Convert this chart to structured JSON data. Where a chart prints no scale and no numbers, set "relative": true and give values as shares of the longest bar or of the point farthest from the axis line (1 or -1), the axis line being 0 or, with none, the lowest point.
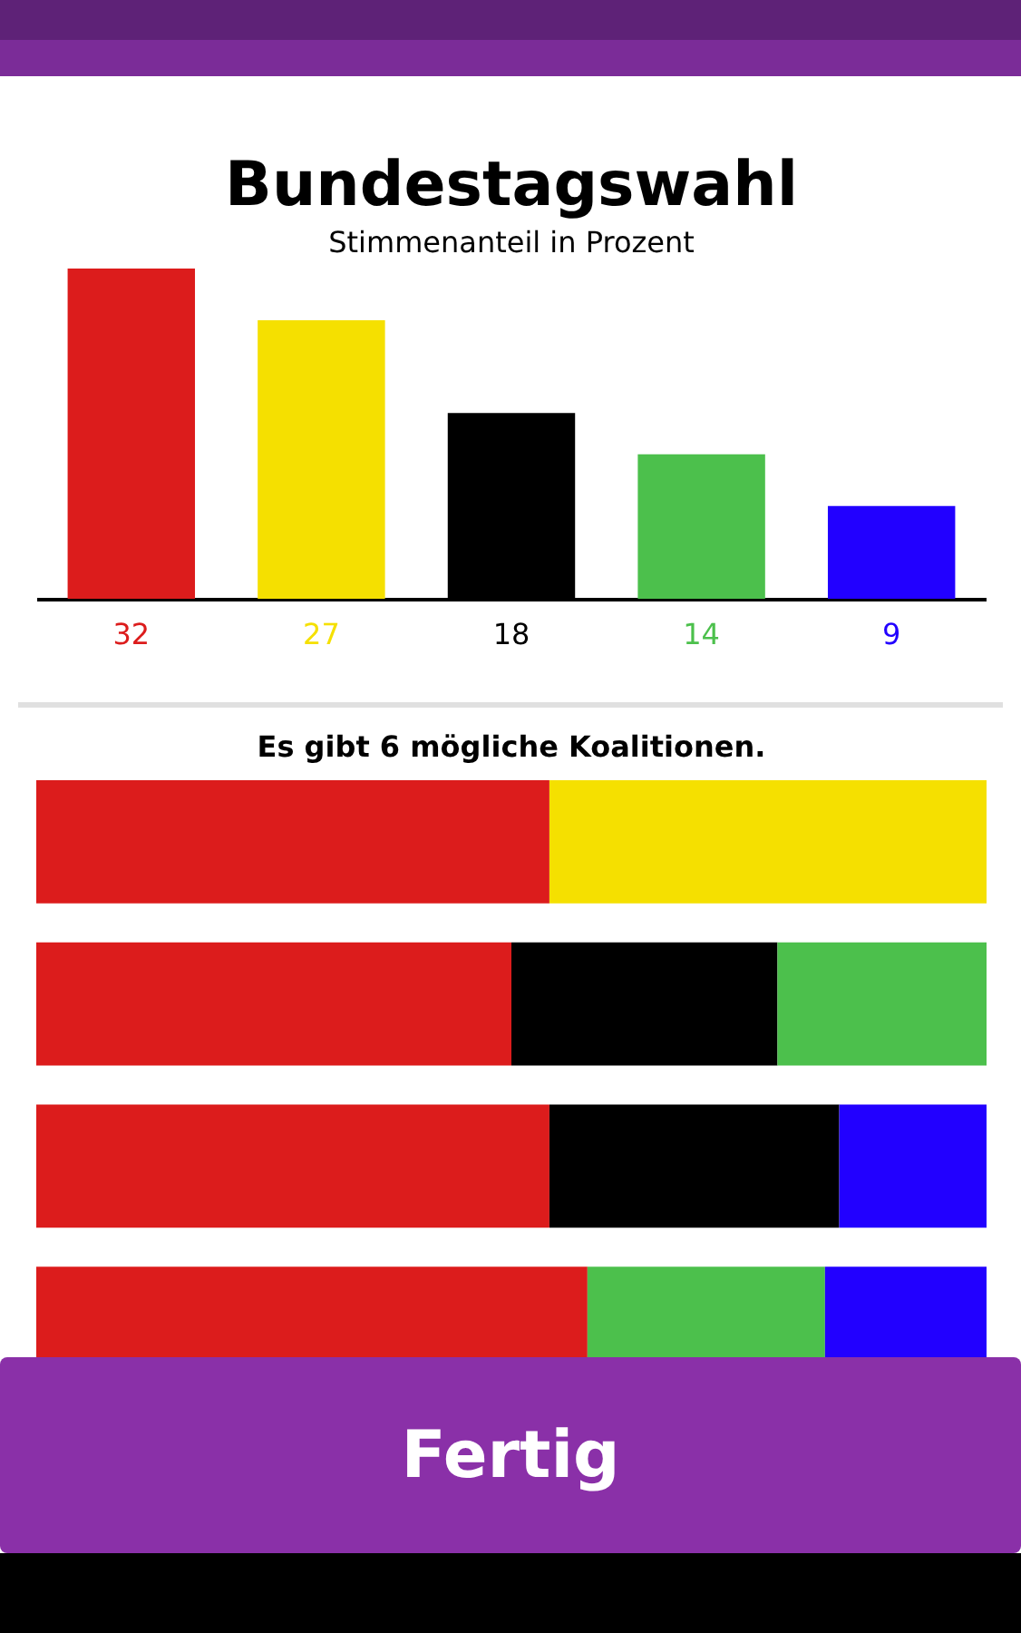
{
  "chart_data": [
    {
      "type": "bar",
      "title": "Bundestagswahl",
      "subtitle": "Stimmenanteil in Prozent",
      "categories": [
        null,
        null,
        null,
        null,
        null
      ],
      "values": [
        32,
        27,
        18,
        14,
        9
      ],
      "colors": [
        "#dc1c1c",
        "#f5e000",
        "#000000",
        "#4cc04c",
        "#2200ff"
      ],
      "data_labels": true,
      "tick_labels": false
    },
    {
      "type": "bar",
      "title": "Es gibt 6 mögliche Koalitionen.",
      "orientation": "horizontal",
      "stacked": true,
      "relative": true,
      "tick_labels": false,
      "categories": [
        null,
        null,
        null,
        null
      ],
      "series": [
        {
          "color": "#dc1c1c",
          "values": [
            0.54,
            0.5,
            0.54,
            0.58
          ]
        },
        {
          "color": "#f5e000",
          "values": [
            0.46,
            null,
            null,
            null
          ]
        },
        {
          "color": "#000000",
          "values": [
            null,
            0.28,
            0.305,
            null
          ]
        },
        {
          "color": "#4cc04c",
          "values": [
            null,
            0.22,
            null,
            0.25
          ]
        },
        {
          "color": "#2200ff",
          "values": [
            null,
            null,
            0.155,
            0.17
          ]
        }
      ],
      "annotations": [
        "Fertig"
      ]
    }
  ]
}
